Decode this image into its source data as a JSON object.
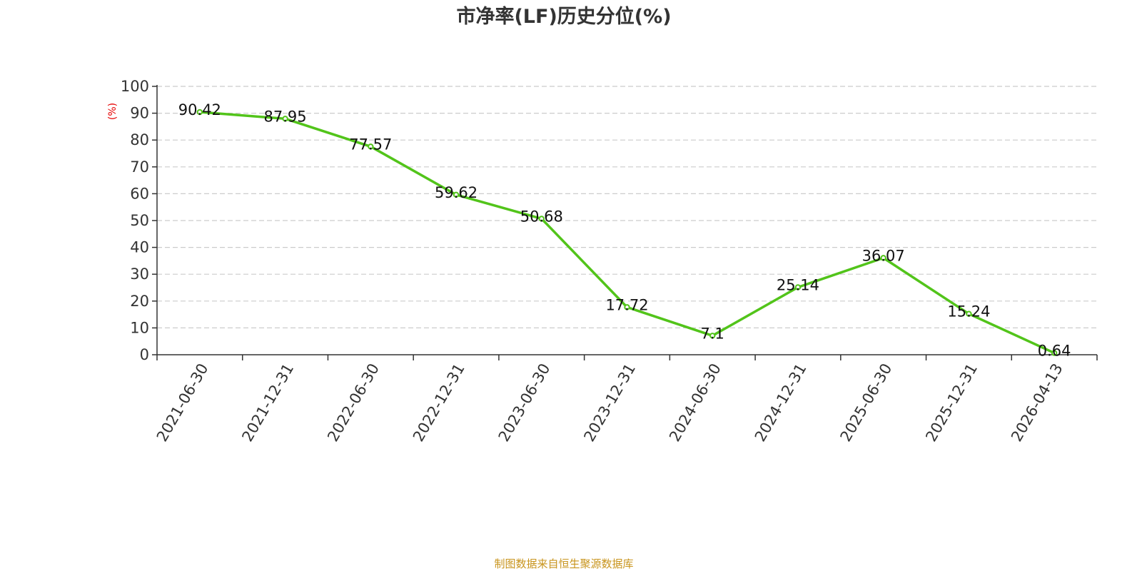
{
  "chart_data": {
    "type": "line",
    "title": "市净率(LF)历史分位(%)",
    "ylabel": "(%)",
    "ylim": [
      0,
      100
    ],
    "yticks": [
      "0",
      "10",
      "20",
      "30",
      "40",
      "50",
      "60",
      "70",
      "80",
      "90",
      "100"
    ],
    "grid": true,
    "categories": [
      "2021-06-30",
      "2021-12-31",
      "2022-06-30",
      "2022-12-31",
      "2023-06-30",
      "2023-12-31",
      "2024-06-30",
      "2024-12-31",
      "2025-06-30",
      "2025-12-31",
      "2026-04-13"
    ],
    "series": [
      {
        "values": [
          90.42,
          87.95,
          77.57,
          59.62,
          50.68,
          17.72,
          7.1,
          25.14,
          36.07,
          15.24,
          0.64
        ],
        "labels": [
          "90.42",
          "87.95",
          "77.57",
          "59.62",
          "50.68",
          "17.72",
          "7.1",
          "25.14",
          "36.07",
          "15.24",
          "0.64"
        ]
      }
    ],
    "source": "制图数据来自恒生聚源数据库"
  },
  "colors": {
    "line": "#52c41a",
    "ylabel": "#e60000",
    "source": "#c8941c",
    "grid": "#cccccc",
    "axis": "#333333"
  }
}
